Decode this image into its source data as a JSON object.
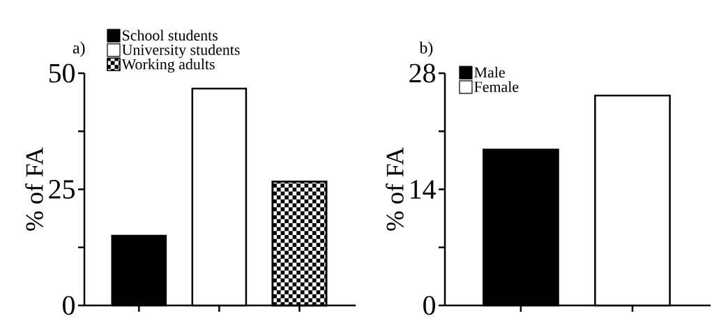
{
  "chart_data": [
    {
      "type": "bar",
      "title": "a)",
      "ylabel": "% of FA",
      "categories": [
        null,
        null,
        null
      ],
      "series": [
        {
          "name": "School students",
          "color": "#000000",
          "values": [
            15.0,
            null,
            null
          ]
        },
        {
          "name": "University students",
          "color": "#ffffff",
          "values": [
            null,
            46.7,
            null
          ]
        },
        {
          "name": "Working adults",
          "color": "#000000",
          "values": [
            null,
            null,
            26.7
          ]
        }
      ],
      "ylim": [
        0,
        50
      ],
      "yticks": [
        0,
        {
          "value": 12.5,
          "label": null
        },
        25,
        {
          "value": 37.5,
          "label": null
        },
        50
      ],
      "legend": "top"
    },
    {
      "type": "bar",
      "title": "b)",
      "ylabel": "% of FA",
      "categories": [
        null,
        null
      ],
      "series": [
        {
          "name": "Male",
          "color": "#000000",
          "values": [
            18.8,
            null
          ]
        },
        {
          "name": "Female",
          "color": "#ffffff",
          "values": [
            null,
            25.3
          ]
        }
      ],
      "ylim": [
        0,
        28
      ],
      "yticks": [
        0,
        {
          "value": 7,
          "label": null
        },
        14,
        {
          "value": 21,
          "label": null
        },
        28
      ],
      "legend": "top left"
    }
  ]
}
